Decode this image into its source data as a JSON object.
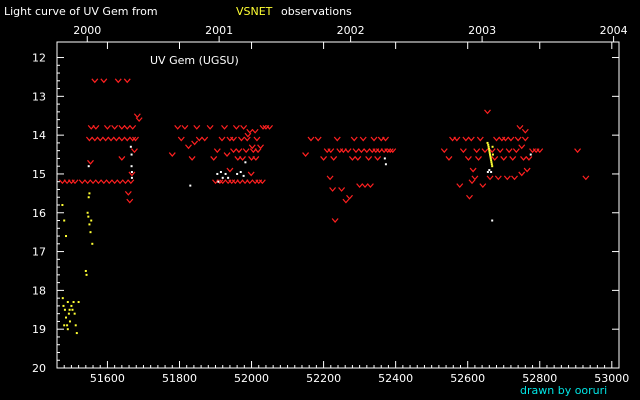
{
  "chart_data": {
    "type": "scatter",
    "title_prefix": "Light curve of UV Gem from",
    "title_highlight": "VSNET",
    "title_suffix": "observations",
    "star_label": "UV Gem (UGSU)",
    "credit": "drawn by ooruri",
    "xlim": [
      51460,
      53020
    ],
    "ylim": [
      20,
      11.6
    ],
    "x_ticks": [
      51600,
      51800,
      52000,
      52200,
      52400,
      52600,
      52800,
      53000
    ],
    "x_tick_labels": [
      "51600",
      "51800",
      "52000",
      "52200",
      "52400",
      "52600",
      "52800",
      "53000"
    ],
    "y_ticks": [
      12,
      13,
      14,
      15,
      16,
      17,
      18,
      19,
      20
    ],
    "y_tick_labels": [
      "12",
      "13",
      "14",
      "15",
      "16",
      "17",
      "18",
      "19",
      "20"
    ],
    "year_ticks": [
      51544,
      51910,
      52275,
      52640,
      53005
    ],
    "year_labels": [
      "2000",
      "2001",
      "2002",
      "2003",
      "2004"
    ],
    "colors": {
      "background": "#000000",
      "axes": "#ffffff",
      "text": "#ffffff",
      "highlight": "#ffff33",
      "credit": "#00e5e5",
      "upper_limit": "#ff2020",
      "visual_obs": "#ffffff",
      "yellow_obs": "#ffff33"
    },
    "series": [
      {
        "marker": "v",
        "color": "#ff2020",
        "points": [
          [
            51475,
            15.2
          ],
          [
            51488,
            15.2
          ],
          [
            51500,
            15.2
          ],
          [
            51510,
            15.2
          ],
          [
            51530,
            15.2
          ],
          [
            51545,
            15.2
          ],
          [
            51560,
            15.2
          ],
          [
            51575,
            15.2
          ],
          [
            51590,
            15.2
          ],
          [
            51605,
            15.2
          ],
          [
            51620,
            15.2
          ],
          [
            51635,
            15.2
          ],
          [
            51650,
            15.2
          ],
          [
            51665,
            15.2
          ],
          [
            51550,
            14.1
          ],
          [
            51565,
            14.1
          ],
          [
            51580,
            14.1
          ],
          [
            51595,
            14.1
          ],
          [
            51610,
            14.1
          ],
          [
            51625,
            14.1
          ],
          [
            51640,
            14.1
          ],
          [
            51655,
            14.1
          ],
          [
            51670,
            14.1
          ],
          [
            51555,
            13.8
          ],
          [
            51568,
            13.8
          ],
          [
            51600,
            13.8
          ],
          [
            51620,
            13.8
          ],
          [
            51640,
            13.8
          ],
          [
            51655,
            13.8
          ],
          [
            51670,
            13.8
          ],
          [
            51565,
            12.6
          ],
          [
            51590,
            12.6
          ],
          [
            51630,
            12.6
          ],
          [
            51655,
            12.6
          ],
          [
            51553,
            14.7
          ],
          [
            51640,
            14.6
          ],
          [
            51668,
            15.0
          ],
          [
            51675,
            14.4
          ],
          [
            51683,
            13.5
          ],
          [
            51688,
            13.6
          ],
          [
            51678,
            14.1
          ],
          [
            51662,
            15.7
          ],
          [
            51658,
            15.5
          ],
          [
            51780,
            14.5
          ],
          [
            51795,
            13.8
          ],
          [
            51805,
            14.1
          ],
          [
            51815,
            13.8
          ],
          [
            51825,
            14.3
          ],
          [
            51835,
            14.6
          ],
          [
            51842,
            14.2
          ],
          [
            51848,
            13.8
          ],
          [
            51855,
            14.1
          ],
          [
            51870,
            14.1
          ],
          [
            51885,
            13.8
          ],
          [
            51895,
            14.6
          ],
          [
            51905,
            14.4
          ],
          [
            51912,
            15.2
          ],
          [
            51918,
            14.1
          ],
          [
            51925,
            13.8
          ],
          [
            51932,
            14.5
          ],
          [
            51940,
            14.1
          ],
          [
            51945,
            15.2
          ],
          [
            51950,
            14.4
          ],
          [
            51958,
            13.8
          ],
          [
            51962,
            14.6
          ],
          [
            51968,
            15.2
          ],
          [
            51972,
            14.1
          ],
          [
            51978,
            13.8
          ],
          [
            51985,
            14.4
          ],
          [
            51990,
            14.0
          ],
          [
            51995,
            15.2
          ],
          [
            52000,
            14.6
          ],
          [
            52005,
            14.4
          ],
          [
            52010,
            13.9
          ],
          [
            52015,
            14.1
          ],
          [
            52020,
            15.2
          ],
          [
            52025,
            14.3
          ],
          [
            52032,
            13.8
          ],
          [
            52040,
            13.8
          ],
          [
            52050,
            13.8
          ],
          [
            52030,
            15.2
          ],
          [
            51999,
            15.0
          ],
          [
            51940,
            14.9
          ],
          [
            51900,
            15.2
          ],
          [
            51920,
            15.2
          ],
          [
            51935,
            15.2
          ],
          [
            51955,
            15.2
          ],
          [
            51982,
            15.2
          ],
          [
            52010,
            15.2
          ],
          [
            51950,
            14.1
          ],
          [
            51965,
            14.4
          ],
          [
            51975,
            14.6
          ],
          [
            51988,
            14.1
          ],
          [
            51995,
            13.9
          ],
          [
            52002,
            14.3
          ],
          [
            52012,
            14.6
          ],
          [
            52018,
            14.4
          ],
          [
            52150,
            14.5
          ],
          [
            52165,
            14.1
          ],
          [
            52185,
            14.1
          ],
          [
            52200,
            14.6
          ],
          [
            52210,
            14.4
          ],
          [
            52220,
            14.4
          ],
          [
            52228,
            14.6
          ],
          [
            52232,
            16.2
          ],
          [
            52238,
            14.1
          ],
          [
            52245,
            14.4
          ],
          [
            52250,
            15.4
          ],
          [
            52255,
            14.4
          ],
          [
            52262,
            15.7
          ],
          [
            52268,
            14.4
          ],
          [
            52272,
            15.6
          ],
          [
            52280,
            14.6
          ],
          [
            52285,
            14.1
          ],
          [
            52290,
            14.4
          ],
          [
            52295,
            14.6
          ],
          [
            52300,
            15.3
          ],
          [
            52305,
            14.4
          ],
          [
            52310,
            14.1
          ],
          [
            52315,
            15.3
          ],
          [
            52320,
            14.4
          ],
          [
            52325,
            14.6
          ],
          [
            52330,
            15.3
          ],
          [
            52335,
            14.4
          ],
          [
            52340,
            14.1
          ],
          [
            52345,
            14.4
          ],
          [
            52350,
            14.6
          ],
          [
            52355,
            14.4
          ],
          [
            52360,
            14.1
          ],
          [
            52368,
            14.4
          ],
          [
            52372,
            14.1
          ],
          [
            52378,
            14.4
          ],
          [
            52385,
            14.4
          ],
          [
            52392,
            14.4
          ],
          [
            52225,
            15.4
          ],
          [
            52218,
            15.1
          ],
          [
            52535,
            14.4
          ],
          [
            52548,
            14.6
          ],
          [
            52558,
            14.1
          ],
          [
            52570,
            14.1
          ],
          [
            52578,
            15.3
          ],
          [
            52588,
            14.4
          ],
          [
            52595,
            14.1
          ],
          [
            52602,
            14.6
          ],
          [
            52610,
            14.1
          ],
          [
            52615,
            14.9
          ],
          [
            52620,
            15.1
          ],
          [
            52625,
            14.4
          ],
          [
            52630,
            14.6
          ],
          [
            52635,
            14.1
          ],
          [
            52642,
            15.3
          ],
          [
            52648,
            14.4
          ],
          [
            52655,
            13.4
          ],
          [
            52662,
            15.1
          ],
          [
            52668,
            14.4
          ],
          [
            52675,
            14.6
          ],
          [
            52680,
            14.1
          ],
          [
            52685,
            15.1
          ],
          [
            52690,
            14.4
          ],
          [
            52695,
            14.1
          ],
          [
            52700,
            14.6
          ],
          [
            52705,
            14.1
          ],
          [
            52710,
            15.1
          ],
          [
            52715,
            14.4
          ],
          [
            52720,
            14.1
          ],
          [
            52725,
            14.6
          ],
          [
            52730,
            15.1
          ],
          [
            52735,
            14.4
          ],
          [
            52740,
            14.1
          ],
          [
            52745,
            13.8
          ],
          [
            52750,
            14.3
          ],
          [
            52755,
            14.6
          ],
          [
            52760,
            14.1
          ],
          [
            52765,
            14.9
          ],
          [
            52770,
            14.6
          ],
          [
            52780,
            14.4
          ],
          [
            52790,
            14.4
          ],
          [
            52800,
            14.4
          ],
          [
            52905,
            14.4
          ],
          [
            52928,
            15.1
          ],
          [
            52605,
            15.6
          ],
          [
            52612,
            15.2
          ],
          [
            52750,
            15.0
          ],
          [
            52760,
            13.9
          ]
        ]
      },
      {
        "marker": "dot",
        "color": "#ffffff",
        "points": [
          [
            51548,
            14.8
          ],
          [
            51665,
            14.3
          ],
          [
            51667,
            14.5
          ],
          [
            51667,
            14.8
          ],
          [
            51668,
            14.95
          ],
          [
            51668,
            15.1
          ],
          [
            51830,
            15.3
          ],
          [
            51905,
            15.0
          ],
          [
            51908,
            15.2
          ],
          [
            51915,
            14.95
          ],
          [
            51920,
            15.1
          ],
          [
            51928,
            15.0
          ],
          [
            51935,
            15.1
          ],
          [
            51960,
            15.0
          ],
          [
            51970,
            14.95
          ],
          [
            51978,
            15.05
          ],
          [
            51983,
            14.7
          ],
          [
            52370,
            14.6
          ],
          [
            52373,
            14.75
          ],
          [
            52656,
            14.95
          ],
          [
            52660,
            14.9
          ],
          [
            52665,
            14.95
          ],
          [
            52668,
            16.2
          ],
          [
            52775,
            14.5
          ]
        ]
      },
      {
        "marker": "dot",
        "color": "#ffff33",
        "points": [
          [
            51475,
            15.8
          ],
          [
            51480,
            16.2
          ],
          [
            51485,
            16.6
          ],
          [
            51548,
            15.6
          ],
          [
            51550,
            15.5
          ],
          [
            51545,
            16.0
          ],
          [
            51547,
            16.1
          ],
          [
            51550,
            16.3
          ],
          [
            51553,
            16.5
          ],
          [
            51558,
            16.8
          ],
          [
            51555,
            16.2
          ],
          [
            51540,
            17.5
          ],
          [
            51542,
            17.6
          ],
          [
            51476,
            18.2
          ],
          [
            51478,
            18.4
          ],
          [
            51482,
            18.5
          ],
          [
            51485,
            18.7
          ],
          [
            51488,
            18.9
          ],
          [
            51490,
            18.3
          ],
          [
            51493,
            18.6
          ],
          [
            51496,
            18.8
          ],
          [
            51500,
            18.4
          ],
          [
            51503,
            18.5
          ],
          [
            51506,
            18.3
          ],
          [
            51509,
            18.6
          ],
          [
            51512,
            18.9
          ],
          [
            51515,
            19.1
          ],
          [
            51490,
            19.0
          ],
          [
            51480,
            18.9
          ],
          [
            51495,
            18.5
          ],
          [
            51520,
            18.3
          ],
          [
            52655,
            14.2
          ],
          [
            52657,
            14.25
          ],
          [
            52658,
            14.3
          ],
          [
            52659,
            14.35
          ],
          [
            52660,
            14.4
          ],
          [
            52661,
            14.45
          ],
          [
            52662,
            14.5
          ],
          [
            52663,
            14.55
          ],
          [
            52664,
            14.6
          ],
          [
            52665,
            14.65
          ],
          [
            52666,
            14.7
          ],
          [
            52667,
            14.75
          ],
          [
            52668,
            14.8
          ],
          [
            52669,
            14.3
          ],
          [
            52670,
            14.5
          ]
        ]
      }
    ]
  }
}
